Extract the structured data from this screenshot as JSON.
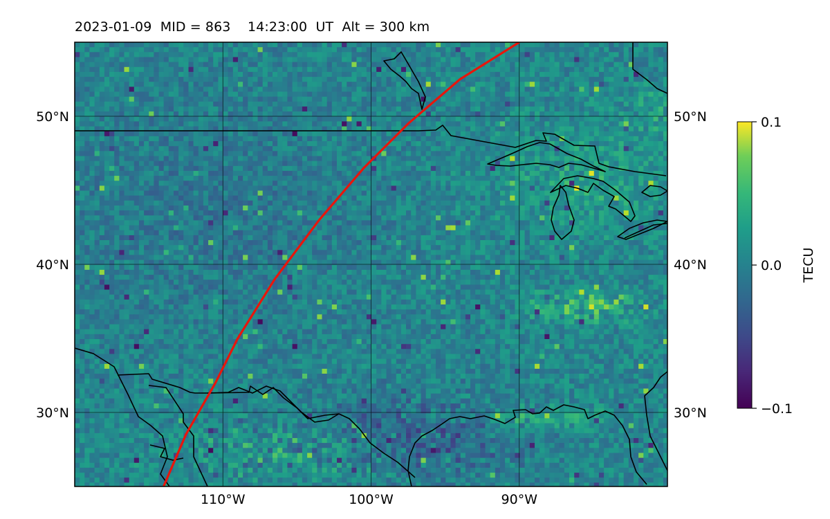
{
  "title": "2023-01-09  MID = 863    14:23:00  UT  Alt = 300 km",
  "map": {
    "lon_range": [
      -120,
      -80
    ],
    "lat_range": [
      25,
      55
    ],
    "lon_ticks": [
      {
        "value": -110,
        "label": "110°W"
      },
      {
        "value": -100,
        "label": "100°W"
      },
      {
        "value": -90,
        "label": "90°W"
      }
    ],
    "lat_ticks": [
      {
        "value": 50,
        "label": "50°N"
      },
      {
        "value": 40,
        "label": "40°N"
      },
      {
        "value": 30,
        "label": "30°N"
      }
    ],
    "gridlines": true,
    "field": "TEC perturbation (noisy raster, yellow patches over Gulf coast and Ohio valley)",
    "track_color": "#e8160c",
    "track": [
      [
        -114,
        25
      ],
      [
        -112.5,
        28.5
      ],
      [
        -110.5,
        32
      ],
      [
        -109,
        35
      ],
      [
        -106.5,
        39
      ],
      [
        -103.5,
        43
      ],
      [
        -100.5,
        46.5
      ],
      [
        -97.5,
        49.5
      ],
      [
        -94,
        52.5
      ],
      [
        -90,
        55
      ]
    ]
  },
  "colorbar": {
    "label": "TECU",
    "colormap": "viridis",
    "ticks": [
      {
        "value": 0.1,
        "label": "0.1"
      },
      {
        "value": 0.0,
        "label": "0.0"
      },
      {
        "value": -0.1,
        "label": "−0.1"
      }
    ],
    "range": [
      -0.1,
      0.1
    ]
  }
}
